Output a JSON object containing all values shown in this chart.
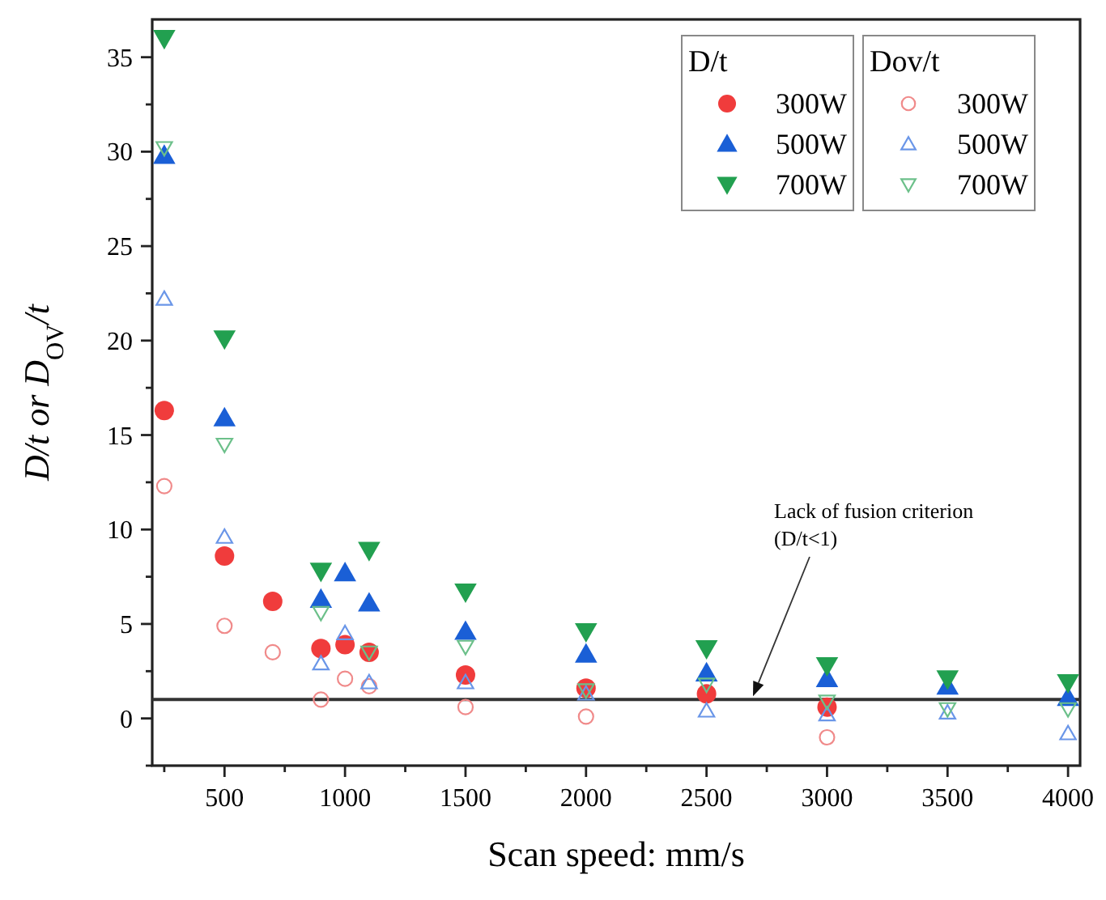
{
  "chart_data": {
    "type": "scatter",
    "xlabel": "Scan speed: mm/s",
    "ylabel": "D/t or D$_{OV}$/t",
    "legend_title": [
      "D/t",
      "Dov/t"
    ],
    "legend": "top right",
    "grid": false,
    "x": [
      250,
      500,
      700,
      900,
      1000,
      1100,
      1500,
      2000,
      2500,
      3000,
      3500,
      4000
    ],
    "xlim": [
      200,
      4050
    ],
    "ylim": [
      -2.5,
      37
    ],
    "xticks": [
      {
        "value": 250,
        "label": null
      },
      500,
      {
        "value": 750,
        "label": null
      },
      1000,
      {
        "value": 1250,
        "label": null
      },
      1500,
      {
        "value": 1750,
        "label": null
      },
      2000,
      {
        "value": 2250,
        "label": null
      },
      2500,
      {
        "value": 2750,
        "label": null
      },
      3000,
      {
        "value": 3250,
        "label": null
      },
      3500,
      {
        "value": 3750,
        "label": null
      },
      4000
    ],
    "yticks": [
      {
        "value": -2.5,
        "label": null
      },
      0,
      {
        "value": 2.5,
        "label": null
      },
      5,
      {
        "value": 7.5,
        "label": null
      },
      10,
      {
        "value": 12.5,
        "label": null
      },
      15,
      {
        "value": 17.5,
        "label": null
      },
      20,
      {
        "value": 22.5,
        "label": null
      },
      25,
      {
        "value": 27.5,
        "label": null
      },
      30,
      {
        "value": 32.5,
        "label": null
      },
      35
    ],
    "series": [
      {
        "name": "300W",
        "color": "#f03c3c",
        "marker": "circle",
        "values": [
          16.3,
          8.6,
          6.2,
          3.7,
          3.9,
          3.5,
          2.3,
          1.6,
          1.3,
          0.6,
          null,
          null
        ]
      },
      {
        "name": "500W",
        "color": "#1a5fd6",
        "marker": "triangle",
        "values": [
          29.8,
          15.9,
          null,
          6.3,
          7.7,
          6.1,
          4.6,
          3.4,
          2.4,
          2.1,
          1.7,
          1.1
        ]
      },
      {
        "name": "700W",
        "color": "#22a050",
        "marker": "triangle-down",
        "values": [
          36.0,
          20.1,
          null,
          7.8,
          null,
          8.9,
          6.7,
          4.6,
          3.7,
          2.8,
          2.1,
          1.9
        ]
      },
      {
        "name": "300W",
        "color": "#f08a8a",
        "marker": "circle-open",
        "values": [
          12.3,
          4.9,
          3.5,
          1.0,
          2.1,
          1.7,
          0.6,
          0.1,
          null,
          -1.0,
          null,
          null
        ]
      },
      {
        "name": "500W",
        "color": "#6a96e8",
        "marker": "triangle-open",
        "values": [
          22.2,
          9.6,
          null,
          2.9,
          4.5,
          1.9,
          1.9,
          1.3,
          0.4,
          0.2,
          0.3,
          -0.8
        ]
      },
      {
        "name": "700W",
        "color": "#6cc08a",
        "marker": "triangle-down-open",
        "values": [
          30.2,
          14.5,
          null,
          5.6,
          null,
          3.5,
          3.8,
          1.5,
          1.8,
          0.9,
          0.5,
          0.5
        ]
      }
    ],
    "ref_lines": [
      {
        "axis": "y",
        "value": 1,
        "label": null,
        "color": "#333333"
      }
    ],
    "annotations": [
      "Lack of fusion criterion\n(D/t<1)"
    ]
  }
}
